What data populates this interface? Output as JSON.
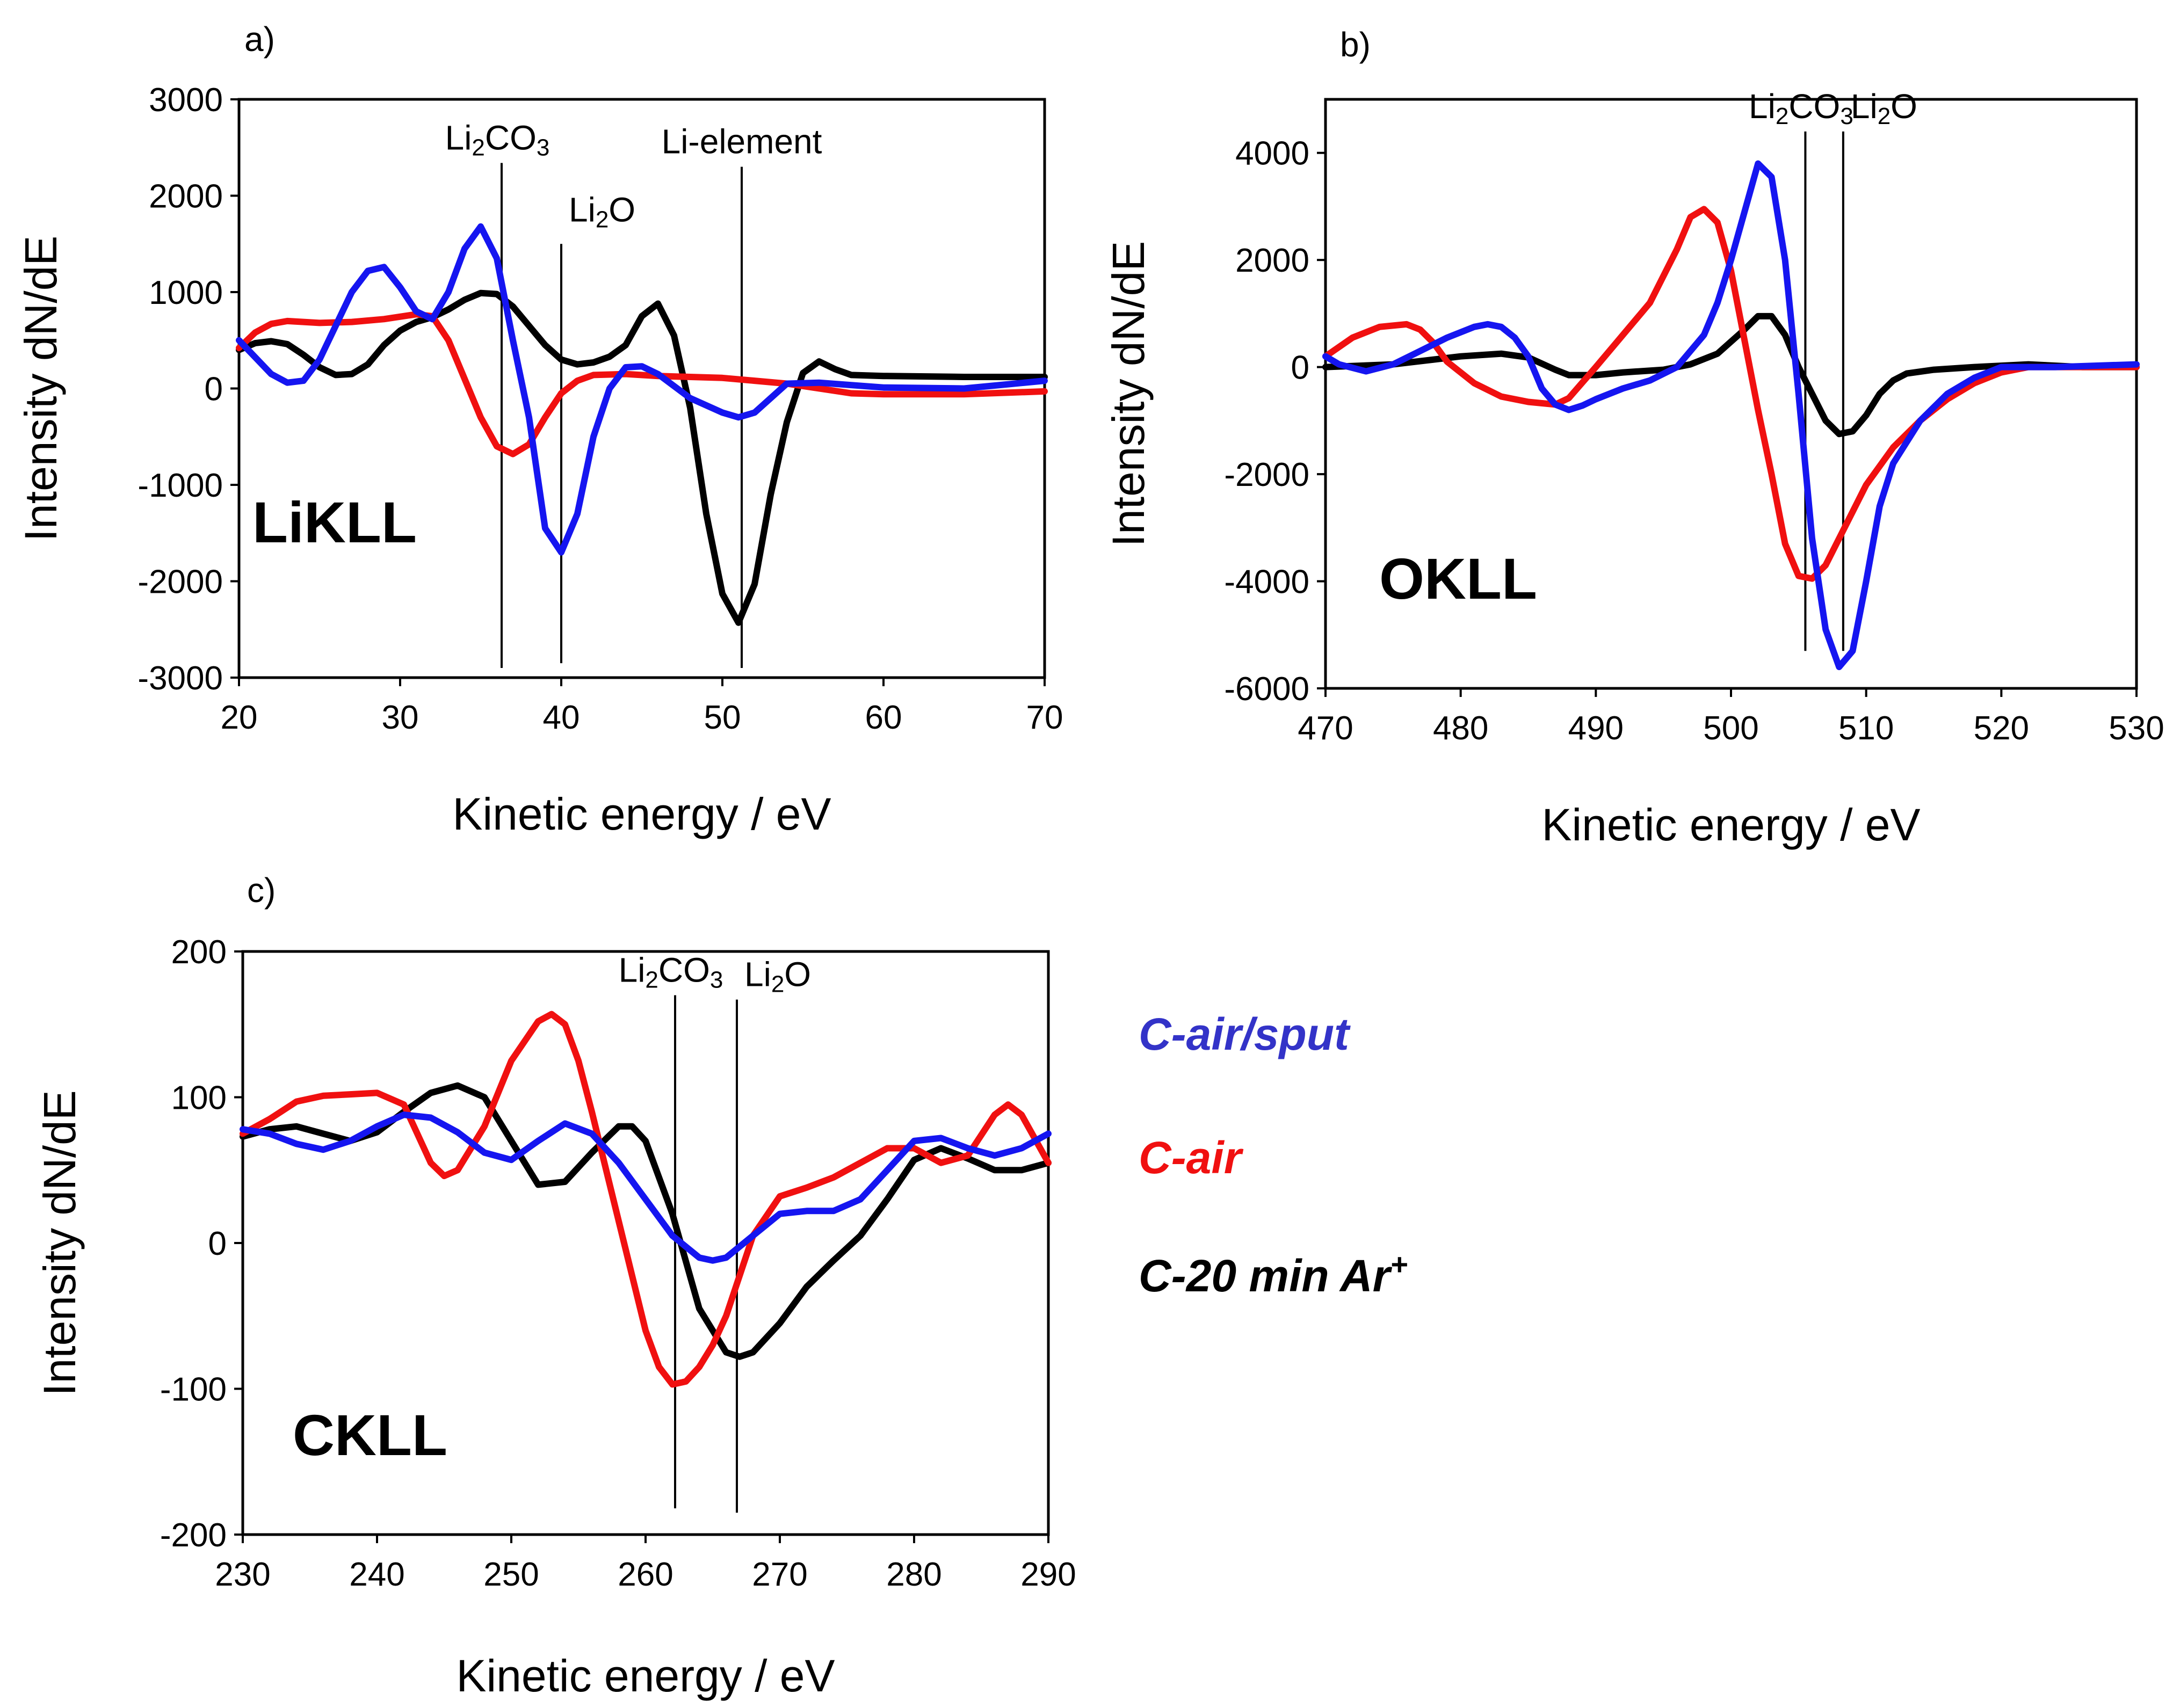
{
  "colors": {
    "c_air_sput": "#1515f0",
    "c_air": "#f01010",
    "c_ar": "#000000"
  },
  "legend": [
    {
      "key": "c_air_sput",
      "label": "C-air/sput",
      "sup": "",
      "color": "#3333c8"
    },
    {
      "key": "c_air",
      "label": "C-air",
      "sup": "",
      "color": "#f01010"
    },
    {
      "key": "c_ar",
      "label": "C-20 min Ar",
      "sup": "+",
      "color": "#000000"
    }
  ],
  "chart_data": [
    {
      "type": "line",
      "panel": "a)",
      "spectrum_label": "LiKLL",
      "xlabel": "Kinetic energy / eV",
      "ylabel": "Intensity dN/dE",
      "xlim": [
        20,
        70
      ],
      "ylim": [
        -3000,
        3000
      ],
      "xticks": [
        20,
        30,
        40,
        50,
        60,
        70
      ],
      "yticks": [
        3000,
        2000,
        1000,
        0,
        -1000,
        -2000,
        -3000
      ],
      "reference_lines": [
        {
          "x": 36.3,
          "y_from": -2900,
          "y_to": 2340,
          "label": "Li",
          "sub": "2",
          "label_rest": "CO",
          "sub2": "3"
        },
        {
          "x": 40.0,
          "y_from": -2850,
          "y_to": 1500,
          "label": "Li",
          "sub": "2",
          "label_rest": "O",
          "sub2": ""
        },
        {
          "x": 51.2,
          "y_from": -2900,
          "y_to": 2300,
          "label": "Li-element",
          "sub": "",
          "label_rest": "",
          "sub2": ""
        }
      ],
      "series": [
        {
          "key": "c_air_sput",
          "name": "C-air/sput",
          "x": [
            20,
            22,
            23,
            24,
            25,
            27,
            28,
            29,
            30,
            31,
            32,
            33,
            34,
            35,
            36,
            37,
            38,
            39,
            40,
            41,
            42,
            43,
            44,
            45,
            46,
            48,
            50,
            51,
            52,
            54,
            56,
            60,
            65,
            70
          ],
          "y": [
            500,
            150,
            60,
            80,
            300,
            1000,
            1220,
            1260,
            1050,
            800,
            720,
            1000,
            1450,
            1680,
            1350,
            500,
            -300,
            -1450,
            -1700,
            -1300,
            -500,
            0,
            220,
            230,
            150,
            -100,
            -250,
            -300,
            -250,
            50,
            60,
            10,
            0,
            80
          ]
        },
        {
          "key": "c_air",
          "name": "C-air",
          "x": [
            20,
            21,
            22,
            23,
            24,
            25,
            27,
            29,
            31,
            32,
            33,
            34,
            35,
            36,
            37,
            38,
            39,
            40,
            41,
            42,
            44,
            46,
            48,
            50,
            52,
            54,
            56,
            58,
            60,
            65,
            70
          ],
          "y": [
            420,
            580,
            670,
            700,
            690,
            680,
            690,
            720,
            770,
            750,
            500,
            100,
            -300,
            -600,
            -680,
            -580,
            -300,
            -50,
            80,
            140,
            150,
            130,
            120,
            110,
            80,
            50,
            0,
            -50,
            -60,
            -60,
            -30
          ]
        },
        {
          "key": "c_ar",
          "name": "C-20 min Ar+",
          "x": [
            20,
            21,
            22,
            23,
            24,
            25,
            26,
            27,
            28,
            29,
            30,
            31,
            32,
            33,
            34,
            35,
            36,
            37,
            38,
            39,
            40,
            41,
            42,
            43,
            44,
            45,
            46,
            47,
            48,
            49,
            50,
            51,
            52,
            53,
            54,
            55,
            56,
            57,
            58,
            60,
            65,
            70
          ],
          "y": [
            400,
            470,
            490,
            460,
            350,
            220,
            140,
            150,
            250,
            450,
            600,
            690,
            740,
            820,
            920,
            990,
            980,
            850,
            650,
            450,
            300,
            250,
            270,
            330,
            450,
            750,
            880,
            550,
            -200,
            -1300,
            -2130,
            -2430,
            -2030,
            -1100,
            -350,
            160,
            280,
            200,
            140,
            130,
            120,
            120
          ]
        }
      ]
    },
    {
      "type": "line",
      "panel": "b)",
      "spectrum_label": "OKLL",
      "xlabel": "Kinetic energy / eV",
      "ylabel": "Intensity dN/dE",
      "xlim": [
        470,
        530
      ],
      "ylim": [
        -6000,
        5000
      ],
      "xticks": [
        470,
        480,
        490,
        500,
        510,
        520,
        530
      ],
      "yticks": [
        4000,
        2000,
        0,
        -2000,
        -4000,
        -6000
      ],
      "reference_lines": [
        {
          "x": 505.5,
          "y_from": -5300,
          "y_to": 4400,
          "label": "Li",
          "sub": "2",
          "label_rest": "CO",
          "sub2": "3"
        },
        {
          "x": 508.3,
          "y_from": -5300,
          "y_to": 4400,
          "label": "Li",
          "sub": "2",
          "label_rest": "O",
          "sub2": ""
        }
      ],
      "series": [
        {
          "key": "c_air_sput",
          "name": "C-air/sput",
          "x": [
            470,
            471,
            473,
            475,
            477,
            479,
            481,
            482,
            483,
            484,
            485,
            486,
            487,
            488,
            489,
            490,
            492,
            494,
            496,
            498,
            499,
            500,
            501,
            502,
            503,
            504,
            505,
            506,
            507,
            508,
            509,
            510,
            511,
            512,
            514,
            516,
            518,
            520,
            524,
            530
          ],
          "y": [
            200,
            50,
            -80,
            50,
            300,
            550,
            750,
            800,
            750,
            550,
            200,
            -400,
            -700,
            -800,
            -720,
            -600,
            -400,
            -250,
            0,
            600,
            1200,
            2000,
            2900,
            3800,
            3550,
            2000,
            -500,
            -3200,
            -4900,
            -5600,
            -5300,
            -4000,
            -2600,
            -1800,
            -1000,
            -500,
            -200,
            0,
            0,
            50
          ]
        },
        {
          "key": "c_air",
          "name": "C-air",
          "x": [
            470,
            472,
            474,
            476,
            477,
            478,
            479,
            481,
            483,
            485,
            487,
            488,
            490,
            492,
            494,
            496,
            497,
            498,
            499,
            500,
            501,
            502,
            503,
            504,
            505,
            506,
            507,
            508,
            509,
            510,
            512,
            514,
            516,
            518,
            520,
            522,
            526,
            530
          ],
          "y": [
            200,
            550,
            750,
            800,
            700,
            450,
            100,
            -300,
            -550,
            -650,
            -700,
            -580,
            0,
            600,
            1200,
            2200,
            2800,
            2950,
            2700,
            1800,
            500,
            -800,
            -2000,
            -3300,
            -3900,
            -3950,
            -3700,
            -3200,
            -2700,
            -2200,
            -1500,
            -1000,
            -600,
            -300,
            -100,
            0,
            0,
            0
          ]
        },
        {
          "key": "c_ar",
          "name": "C-20 min Ar+",
          "x": [
            470,
            475,
            480,
            483,
            485,
            487,
            488,
            490,
            492,
            495,
            497,
            499,
            501,
            502,
            503,
            504,
            505,
            506,
            507,
            508,
            509,
            510,
            511,
            512,
            513,
            515,
            518,
            522,
            526,
            530
          ],
          "y": [
            0,
            50,
            200,
            250,
            180,
            -50,
            -150,
            -150,
            -100,
            -50,
            50,
            250,
            700,
            950,
            950,
            600,
            0,
            -500,
            -1000,
            -1250,
            -1200,
            -900,
            -500,
            -250,
            -120,
            -50,
            0,
            50,
            0,
            0
          ]
        }
      ]
    },
    {
      "type": "line",
      "panel": "c)",
      "spectrum_label": "CKLL",
      "xlabel": "Kinetic energy / eV",
      "ylabel": "Intensity dN/dE",
      "xlim": [
        230,
        290
      ],
      "ylim": [
        -200,
        200
      ],
      "xticks": [
        230,
        240,
        250,
        260,
        270,
        280,
        290
      ],
      "yticks": [
        200,
        100,
        0,
        -100,
        -200
      ],
      "reference_lines": [
        {
          "x": 262.2,
          "y_from": -182,
          "y_to": 170,
          "label": "Li",
          "sub": "2",
          "label_rest": "CO",
          "sub2": "3"
        },
        {
          "x": 266.8,
          "y_from": -185,
          "y_to": 167,
          "label": "Li",
          "sub": "2",
          "label_rest": "O",
          "sub2": ""
        }
      ],
      "series": [
        {
          "key": "c_air_sput",
          "name": "C-air/sput",
          "x": [
            230,
            232,
            234,
            236,
            238,
            240,
            242,
            244,
            246,
            248,
            250,
            252,
            254,
            256,
            258,
            260,
            262,
            264,
            265,
            266,
            268,
            270,
            272,
            274,
            276,
            278,
            280,
            282,
            284,
            286,
            288,
            290
          ],
          "y": [
            78,
            75,
            68,
            64,
            70,
            80,
            88,
            86,
            76,
            62,
            57,
            70,
            82,
            75,
            55,
            30,
            5,
            -10,
            -12,
            -10,
            5,
            20,
            22,
            22,
            30,
            50,
            70,
            72,
            65,
            60,
            65,
            75
          ]
        },
        {
          "key": "c_air",
          "name": "C-air",
          "x": [
            230,
            232,
            234,
            236,
            238,
            240,
            242,
            243,
            244,
            245,
            246,
            248,
            250,
            252,
            253,
            254,
            255,
            256,
            258,
            260,
            261,
            262,
            263,
            264,
            265,
            266,
            268,
            270,
            272,
            274,
            276,
            278,
            280,
            282,
            284,
            286,
            287,
            288,
            290
          ],
          "y": [
            75,
            85,
            97,
            101,
            102,
            103,
            95,
            75,
            55,
            46,
            50,
            80,
            125,
            152,
            157,
            150,
            125,
            90,
            15,
            -60,
            -85,
            -97,
            -95,
            -85,
            -70,
            -50,
            5,
            32,
            38,
            45,
            55,
            65,
            65,
            55,
            60,
            88,
            95,
            88,
            55
          ]
        },
        {
          "key": "c_ar",
          "name": "C-20 min Ar+",
          "x": [
            230,
            232,
            234,
            236,
            238,
            240,
            242,
            244,
            246,
            248,
            250,
            252,
            254,
            256,
            258,
            259,
            260,
            262,
            264,
            266,
            267,
            268,
            270,
            272,
            274,
            276,
            278,
            280,
            282,
            284,
            286,
            288,
            290
          ],
          "y": [
            73,
            78,
            80,
            75,
            70,
            76,
            90,
            103,
            108,
            100,
            70,
            40,
            42,
            62,
            80,
            80,
            70,
            20,
            -45,
            -75,
            -78,
            -75,
            -55,
            -30,
            -12,
            5,
            30,
            57,
            65,
            58,
            50,
            50,
            55
          ]
        }
      ]
    }
  ]
}
